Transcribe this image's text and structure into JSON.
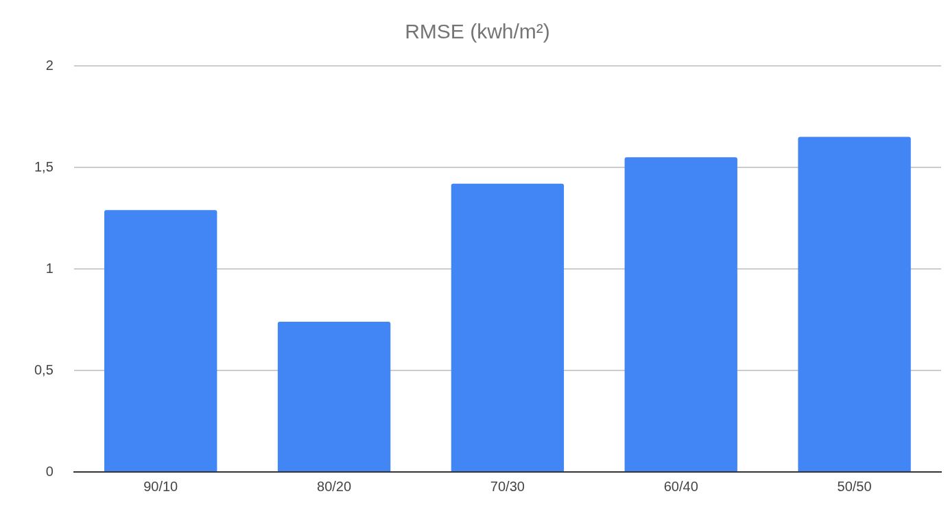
{
  "chart_data": {
    "type": "bar",
    "title": "RMSE (kwh/m²)",
    "categories": [
      "90/10",
      "80/20",
      "70/30",
      "60/40",
      "50/50"
    ],
    "values": [
      1.29,
      0.74,
      1.42,
      1.55,
      1.65
    ],
    "color": "#4285f4",
    "ylim": [
      0,
      2
    ],
    "yticks": [
      0,
      {
        "value": 0.5,
        "label": "0,5"
      },
      1,
      {
        "value": 1.5,
        "label": "1,5"
      },
      2
    ],
    "grid": "y",
    "legend": false
  }
}
